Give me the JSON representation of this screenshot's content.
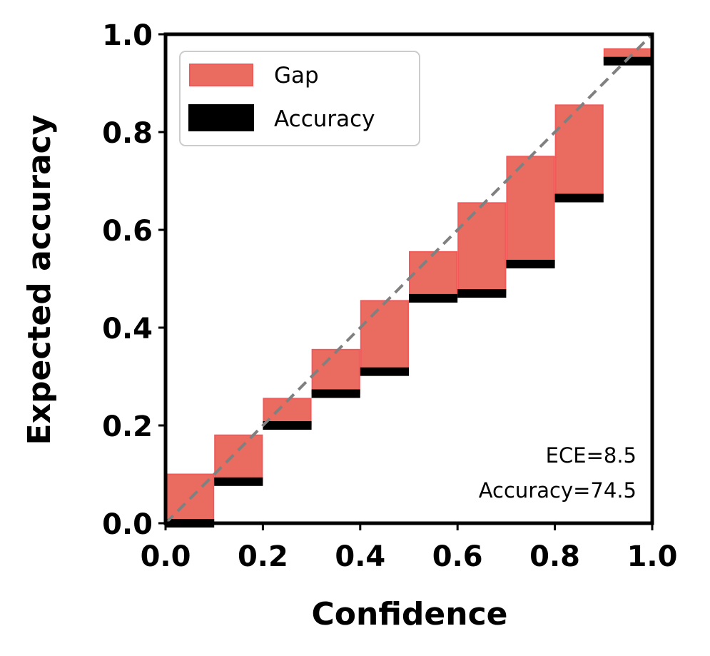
{
  "chart_data": {
    "type": "bar",
    "xlabel": "Confidence",
    "ylabel": "Expected accuracy",
    "xlim": [
      0.0,
      1.0
    ],
    "ylim": [
      0.0,
      1.0
    ],
    "xticks": [
      "0.0",
      "0.2",
      "0.4",
      "0.6",
      "0.8",
      "1.0"
    ],
    "yticks": [
      "0.0",
      "0.2",
      "0.4",
      "0.6",
      "0.8",
      "1.0"
    ],
    "grid": false,
    "legend_position": "top-left",
    "bin_width": 0.1,
    "bins": [
      {
        "left": 0.0,
        "accuracy": 0.0,
        "expected": 0.1
      },
      {
        "left": 0.1,
        "accuracy": 0.085,
        "expected": 0.18
      },
      {
        "left": 0.2,
        "accuracy": 0.2,
        "expected": 0.255
      },
      {
        "left": 0.3,
        "accuracy": 0.265,
        "expected": 0.355
      },
      {
        "left": 0.4,
        "accuracy": 0.31,
        "expected": 0.455
      },
      {
        "left": 0.5,
        "accuracy": 0.46,
        "expected": 0.555
      },
      {
        "left": 0.6,
        "accuracy": 0.47,
        "expected": 0.655
      },
      {
        "left": 0.7,
        "accuracy": 0.53,
        "expected": 0.75
      },
      {
        "left": 0.8,
        "accuracy": 0.665,
        "expected": 0.855
      },
      {
        "left": 0.9,
        "accuracy": 0.945,
        "expected": 0.97
      }
    ],
    "series": [
      {
        "name": "Gap",
        "color": "#ea6b5f"
      },
      {
        "name": "Accuracy",
        "color": "#000000"
      }
    ],
    "reference_line": {
      "from": [
        0,
        0
      ],
      "to": [
        1,
        1
      ],
      "style": "dashed",
      "color": "#808080"
    },
    "annotations": [
      "ECE=8.5",
      "Accuracy=74.5"
    ]
  }
}
